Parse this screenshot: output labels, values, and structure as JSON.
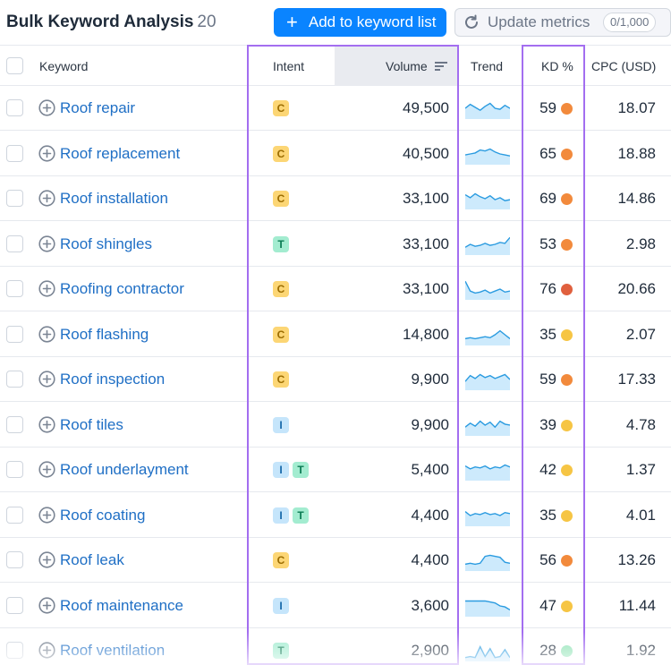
{
  "header": {
    "title": "Bulk Keyword Analysis",
    "count": "20",
    "add_button": "Add to keyword list",
    "update_button": "Update metrics",
    "quota": "0/1,000"
  },
  "columns": {
    "keyword": "Keyword",
    "intent": "Intent",
    "volume": "Volume",
    "trend": "Trend",
    "kd": "KD %",
    "cpc": "CPC (USD)"
  },
  "kd_colors": {
    "orange": "#f28a3c",
    "red": "#e0603e",
    "yellow": "#f6c544",
    "green": "#8fe3b5"
  },
  "rows": [
    {
      "keyword": "Roof repair",
      "intent": [
        "C"
      ],
      "volume": "49,500",
      "kd": "59",
      "kd_color": "orange",
      "cpc": "18.07",
      "trend": [
        0.5,
        0.7,
        0.55,
        0.4,
        0.6,
        0.75,
        0.5,
        0.45,
        0.65,
        0.5
      ]
    },
    {
      "keyword": "Roof replacement",
      "intent": [
        "C"
      ],
      "volume": "40,500",
      "kd": "65",
      "kd_color": "orange",
      "cpc": "18.88",
      "trend": [
        0.45,
        0.5,
        0.55,
        0.7,
        0.65,
        0.75,
        0.6,
        0.5,
        0.45,
        0.4
      ]
    },
    {
      "keyword": "Roof installation",
      "intent": [
        "C"
      ],
      "volume": "33,100",
      "kd": "69",
      "kd_color": "orange",
      "cpc": "14.86",
      "trend": [
        0.7,
        0.55,
        0.75,
        0.6,
        0.5,
        0.65,
        0.45,
        0.55,
        0.4,
        0.45
      ]
    },
    {
      "keyword": "Roof shingles",
      "intent": [
        "T"
      ],
      "volume": "33,100",
      "kd": "53",
      "kd_color": "orange",
      "cpc": "2.98",
      "trend": [
        0.35,
        0.5,
        0.4,
        0.45,
        0.55,
        0.45,
        0.5,
        0.6,
        0.55,
        0.85
      ]
    },
    {
      "keyword": "Roofing contractor",
      "intent": [
        "C"
      ],
      "volume": "33,100",
      "kd": "76",
      "kd_color": "red",
      "cpc": "20.66",
      "trend": [
        0.9,
        0.4,
        0.3,
        0.35,
        0.45,
        0.3,
        0.4,
        0.5,
        0.35,
        0.4
      ]
    },
    {
      "keyword": "Roof flashing",
      "intent": [
        "C"
      ],
      "volume": "14,800",
      "kd": "35",
      "kd_color": "yellow",
      "cpc": "2.07",
      "trend": [
        0.3,
        0.35,
        0.3,
        0.35,
        0.4,
        0.35,
        0.5,
        0.7,
        0.5,
        0.3
      ]
    },
    {
      "keyword": "Roof inspection",
      "intent": [
        "C"
      ],
      "volume": "9,900",
      "kd": "59",
      "kd_color": "orange",
      "cpc": "17.33",
      "trend": [
        0.4,
        0.7,
        0.55,
        0.75,
        0.6,
        0.7,
        0.55,
        0.65,
        0.75,
        0.5
      ]
    },
    {
      "keyword": "Roof tiles",
      "intent": [
        "I"
      ],
      "volume": "9,900",
      "kd": "39",
      "kd_color": "yellow",
      "cpc": "4.78",
      "trend": [
        0.4,
        0.6,
        0.45,
        0.7,
        0.5,
        0.65,
        0.4,
        0.7,
        0.55,
        0.5
      ]
    },
    {
      "keyword": "Roof underlayment",
      "intent": [
        "I",
        "T"
      ],
      "volume": "5,400",
      "kd": "42",
      "kd_color": "yellow",
      "cpc": "1.37",
      "trend": [
        0.7,
        0.55,
        0.65,
        0.6,
        0.7,
        0.55,
        0.65,
        0.6,
        0.75,
        0.65
      ]
    },
    {
      "keyword": "Roof coating",
      "intent": [
        "I",
        "T"
      ],
      "volume": "4,400",
      "kd": "35",
      "kd_color": "yellow",
      "cpc": "4.01",
      "trend": [
        0.7,
        0.5,
        0.6,
        0.55,
        0.65,
        0.55,
        0.6,
        0.5,
        0.65,
        0.6
      ]
    },
    {
      "keyword": "Roof leak",
      "intent": [
        "C"
      ],
      "volume": "4,400",
      "kd": "56",
      "kd_color": "orange",
      "cpc": "13.26",
      "trend": [
        0.3,
        0.35,
        0.3,
        0.35,
        0.7,
        0.75,
        0.7,
        0.65,
        0.4,
        0.35
      ]
    },
    {
      "keyword": "Roof maintenance",
      "intent": [
        "I"
      ],
      "volume": "3,600",
      "kd": "47",
      "kd_color": "yellow",
      "cpc": "11.44",
      "trend": [
        0.75,
        0.75,
        0.75,
        0.75,
        0.75,
        0.7,
        0.65,
        0.5,
        0.45,
        0.3
      ]
    },
    {
      "keyword": "Roof ventilation",
      "intent": [
        "T"
      ],
      "volume": "2,900",
      "kd": "28",
      "kd_color": "green",
      "cpc": "1.92",
      "trend": [
        0.15,
        0.2,
        0.15,
        0.7,
        0.2,
        0.6,
        0.15,
        0.2,
        0.55,
        0.15
      ]
    }
  ]
}
